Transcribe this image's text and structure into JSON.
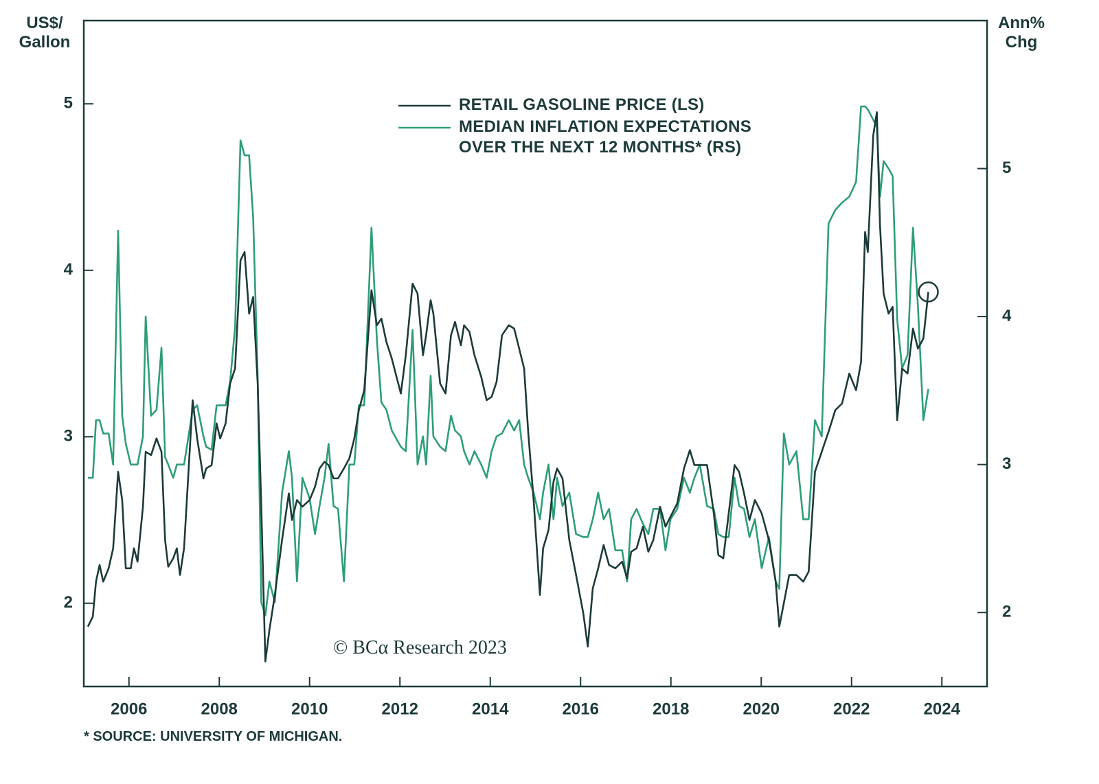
{
  "chart_data": {
    "type": "line",
    "y_label": "US$/ Gallon",
    "y2_label": "Ann% Chg",
    "watermark": "© BCα Research 2023",
    "footnote": "* SOURCE: UNIVERSITY OF MICHIGAN.",
    "grid": false,
    "xlim": [
      2005,
      2025
    ],
    "xticks": [
      2006,
      2008,
      2010,
      2012,
      2014,
      2016,
      2018,
      2020,
      2022,
      2024
    ],
    "ylim": [
      1.5,
      5.5
    ],
    "yticks": [
      2,
      3,
      4,
      5
    ],
    "y2lim": [
      1.5,
      6.0
    ],
    "y2ticks": [
      2,
      3,
      4,
      5
    ],
    "x": [
      2005.09,
      2005.2,
      2005.27,
      2005.35,
      2005.43,
      2005.55,
      2005.65,
      2005.76,
      2005.85,
      2005.93,
      2006.04,
      2006.11,
      2006.19,
      2006.31,
      2006.37,
      2006.49,
      2006.61,
      2006.72,
      2006.8,
      2006.87,
      2006.98,
      2007.06,
      2007.13,
      2007.22,
      2007.41,
      2007.51,
      2007.65,
      2007.71,
      2007.83,
      2007.94,
      2008.02,
      2008.14,
      2008.24,
      2008.35,
      2008.47,
      2008.56,
      2008.66,
      2008.75,
      2008.85,
      2008.93,
      2009.02,
      2009.11,
      2009.23,
      2009.39,
      2009.54,
      2009.61,
      2009.72,
      2009.84,
      2010.0,
      2010.12,
      2010.22,
      2010.33,
      2010.42,
      2010.53,
      2010.63,
      2010.76,
      2010.88,
      2010.99,
      2011.09,
      2011.21,
      2011.37,
      2011.49,
      2011.59,
      2011.7,
      2011.82,
      2012.02,
      2012.13,
      2012.28,
      2012.39,
      2012.51,
      2012.58,
      2012.68,
      2012.74,
      2012.89,
      2013.01,
      2013.13,
      2013.22,
      2013.35,
      2013.42,
      2013.54,
      2013.65,
      2013.8,
      2013.92,
      2014.03,
      2014.14,
      2014.26,
      2014.41,
      2014.53,
      2014.64,
      2014.75,
      2014.84,
      2014.96,
      2015.1,
      2015.17,
      2015.29,
      2015.4,
      2015.48,
      2015.6,
      2015.75,
      2015.9,
      2016.06,
      2016.16,
      2016.27,
      2016.39,
      2016.51,
      2016.63,
      2016.77,
      2016.92,
      2017.03,
      2017.12,
      2017.24,
      2017.38,
      2017.5,
      2017.61,
      2017.76,
      2017.88,
      2017.99,
      2018.14,
      2018.29,
      2018.42,
      2018.52,
      2018.64,
      2018.8,
      2018.95,
      2019.05,
      2019.16,
      2019.28,
      2019.41,
      2019.51,
      2019.62,
      2019.74,
      2019.86,
      2020.01,
      2020.17,
      2020.32,
      2020.4,
      2020.5,
      2020.62,
      2020.78,
      2020.93,
      2021.05,
      2021.19,
      2021.34,
      2021.49,
      2021.64,
      2021.79,
      2021.95,
      2022.1,
      2022.21,
      2022.3,
      2022.36,
      2022.48,
      2022.56,
      2022.63,
      2022.71,
      2022.82,
      2022.91,
      2023.01,
      2023.12,
      2023.24,
      2023.36,
      2023.47,
      2023.59,
      2023.7
    ],
    "series": [
      {
        "name": "RETAIL GASOLINE PRICE (LS)",
        "color": "#1d3a3a",
        "axis": "y",
        "values": [
          1.86,
          1.92,
          2.13,
          2.23,
          2.13,
          2.21,
          2.33,
          2.79,
          2.62,
          2.21,
          2.21,
          2.33,
          2.25,
          2.58,
          2.91,
          2.89,
          2.99,
          2.91,
          2.38,
          2.22,
          2.27,
          2.33,
          2.17,
          2.33,
          3.22,
          2.99,
          2.75,
          2.81,
          2.83,
          3.08,
          2.99,
          3.08,
          3.32,
          3.41,
          4.06,
          4.11,
          3.74,
          3.84,
          3.32,
          2.58,
          1.65,
          1.84,
          2.05,
          2.38,
          2.66,
          2.5,
          2.62,
          2.58,
          2.62,
          2.7,
          2.81,
          2.85,
          2.83,
          2.75,
          2.75,
          2.81,
          2.87,
          2.99,
          3.16,
          3.28,
          3.88,
          3.67,
          3.71,
          3.57,
          3.47,
          3.26,
          3.49,
          3.92,
          3.86,
          3.49,
          3.61,
          3.82,
          3.74,
          3.32,
          3.26,
          3.61,
          3.69,
          3.55,
          3.67,
          3.63,
          3.49,
          3.36,
          3.22,
          3.24,
          3.33,
          3.61,
          3.67,
          3.65,
          3.53,
          3.41,
          3.03,
          2.62,
          2.05,
          2.33,
          2.44,
          2.73,
          2.81,
          2.75,
          2.38,
          2.17,
          1.94,
          1.74,
          2.09,
          2.21,
          2.35,
          2.23,
          2.21,
          2.25,
          2.15,
          2.31,
          2.33,
          2.46,
          2.31,
          2.38,
          2.58,
          2.46,
          2.52,
          2.6,
          2.81,
          2.92,
          2.83,
          2.83,
          2.83,
          2.54,
          2.29,
          2.27,
          2.54,
          2.83,
          2.79,
          2.66,
          2.5,
          2.62,
          2.54,
          2.38,
          2.13,
          1.86,
          2.0,
          2.17,
          2.17,
          2.13,
          2.19,
          2.79,
          2.91,
          3.03,
          3.16,
          3.2,
          3.38,
          3.28,
          3.45,
          4.23,
          4.11,
          4.81,
          4.95,
          4.27,
          3.86,
          3.74,
          3.78,
          3.1,
          3.41,
          3.38,
          3.65,
          3.53,
          3.59,
          3.87
        ]
      },
      {
        "name": "MEDIAN INFLATION EXPECTATIONS OVER THE NEXT 12 MONTHS* (RS)",
        "color": "#2e9e78",
        "axis": "y2",
        "values": [
          2.91,
          2.91,
          3.3,
          3.3,
          3.21,
          3.21,
          3.0,
          4.58,
          3.33,
          3.14,
          3.0,
          3.0,
          3.0,
          3.19,
          4.0,
          3.33,
          3.37,
          3.79,
          3.05,
          3.0,
          2.91,
          3.0,
          3.0,
          3.0,
          3.37,
          3.4,
          3.19,
          3.12,
          3.1,
          3.4,
          3.4,
          3.4,
          3.56,
          3.93,
          5.19,
          5.09,
          5.09,
          4.67,
          3.6,
          2.07,
          1.98,
          2.21,
          2.07,
          2.81,
          3.09,
          2.91,
          2.21,
          2.91,
          2.77,
          2.53,
          2.72,
          2.91,
          3.14,
          2.72,
          2.7,
          2.21,
          3.0,
          3.0,
          3.4,
          3.4,
          4.6,
          3.84,
          3.42,
          3.37,
          3.23,
          3.12,
          3.09,
          3.91,
          3.0,
          3.19,
          3.0,
          3.6,
          3.19,
          3.12,
          3.09,
          3.33,
          3.23,
          3.19,
          3.09,
          3.0,
          3.09,
          3.0,
          2.91,
          3.09,
          3.19,
          3.21,
          3.3,
          3.23,
          3.3,
          3.0,
          2.91,
          2.81,
          2.63,
          2.81,
          3.0,
          2.63,
          2.91,
          2.72,
          2.81,
          2.53,
          2.51,
          2.51,
          2.63,
          2.81,
          2.63,
          2.7,
          2.42,
          2.42,
          2.21,
          2.63,
          2.7,
          2.6,
          2.53,
          2.7,
          2.7,
          2.42,
          2.63,
          2.7,
          2.91,
          2.81,
          2.91,
          3.0,
          2.72,
          2.7,
          2.53,
          2.51,
          2.51,
          2.91,
          2.72,
          2.7,
          2.51,
          2.63,
          2.3,
          2.51,
          2.21,
          2.16,
          3.21,
          3.0,
          3.09,
          2.63,
          2.63,
          3.3,
          3.19,
          4.63,
          4.72,
          4.77,
          4.81,
          4.91,
          5.42,
          5.42,
          5.4,
          5.33,
          5.28,
          4.81,
          5.05,
          5.0,
          4.95,
          3.98,
          3.65,
          3.74,
          4.6,
          4.07,
          3.3,
          3.51
        ]
      }
    ]
  }
}
